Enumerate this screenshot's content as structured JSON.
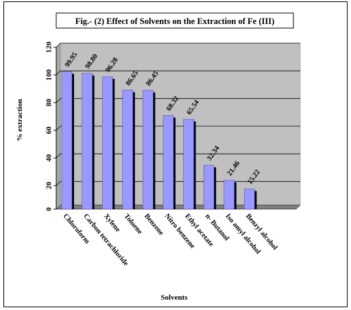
{
  "chart_data": {
    "type": "bar",
    "title": "Fig.- (2)  Effect of Solvents on the Extraction of Fe (III)",
    "xlabel": "Solvents",
    "ylabel": "% extraction",
    "categories": [
      "Chloroform",
      "Carbon tetrachloride",
      "Xylene",
      "Toluene",
      "Benzene",
      "Nitro benzene",
      "Ethyl acetate",
      "n- Butanol",
      "Iso amyl alcohol",
      "Benzyl alcohol"
    ],
    "series": [
      {
        "values": [
          99.95,
          98.8,
          96.28,
          86.65,
          86.45,
          68.32,
          65.54,
          32.34,
          21.46,
          15.22
        ]
      }
    ],
    "data_labels": [
      "99.95",
      "98.80",
      "96.28",
      "86.65",
      "86.45",
      "68.32",
      "65.54",
      "32.34",
      "21.46",
      "15.22"
    ],
    "ylim": [
      0,
      120
    ],
    "yticks": [
      0,
      20,
      40,
      60,
      80,
      100,
      120
    ],
    "grid": true,
    "colors": {
      "bar": "#9999ff",
      "bar_shadow": "#000000",
      "plot_bg": "#c0c0c0",
      "floor": "#808080"
    }
  }
}
